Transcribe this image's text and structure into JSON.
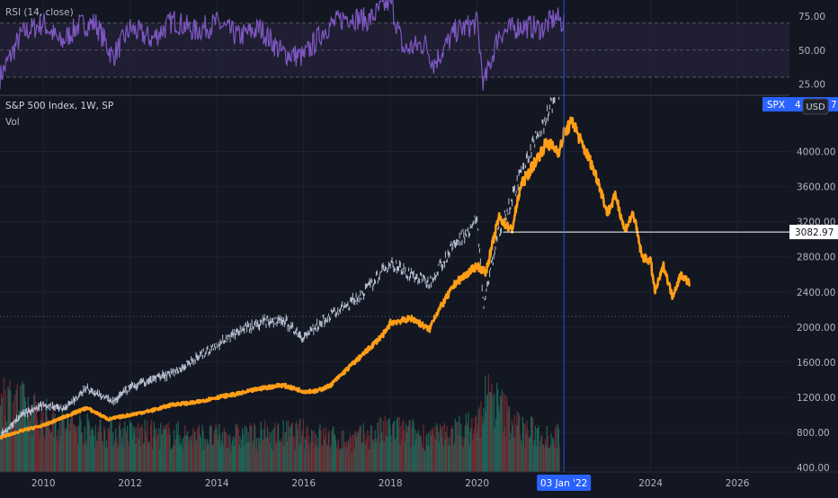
{
  "rsi_pane": {
    "label": "RSI (14, close)",
    "axis_ticks": [
      "75.00",
      "50.00",
      "25.00"
    ]
  },
  "main_pane": {
    "title": "S&P 500 Index, 1W, SP",
    "volume_label": "Vol",
    "symbol_badge": "SPX",
    "symbol_badge_value": "4",
    "symbol_badge_value_tail": "7",
    "currency_button": "USD",
    "price_line_value": "3082.97",
    "crosshair_date": "03 Jan '22"
  },
  "colors": {
    "background": "#131722",
    "rsi_line": "#7e57c2",
    "rsi_band": "#2a2440",
    "projection_line": "#ff9e17",
    "price_candles": "#d6dcf0",
    "volume_up": "#1f6b5c",
    "volume_down": "#7a2b33",
    "crosshair": "#2962ff",
    "price_line": "#ffffff"
  },
  "chart_data": {
    "type": "line",
    "x_axis": {
      "ticks": [
        "2010",
        "2012",
        "2014",
        "2016",
        "2018",
        "2020",
        "2024",
        "2026"
      ],
      "range": [
        2009.0,
        2027.2
      ]
    },
    "y_axis": {
      "ticks": [
        "4000.00",
        "3600.00",
        "3200.00",
        "2800.00",
        "2400.00",
        "2000.00",
        "1600.00",
        "1200.00",
        "800.00",
        "400.00"
      ],
      "range": [
        350,
        4620
      ]
    },
    "rsi": {
      "ylim": [
        18,
        87
      ],
      "levels": [
        70,
        30
      ],
      "x": [
        2009.0,
        2009.5,
        2010.0,
        2010.4,
        2010.8,
        2011.2,
        2011.6,
        2012.0,
        2012.5,
        2013.0,
        2013.5,
        2014.0,
        2014.5,
        2015.0,
        2015.5,
        2016.0,
        2016.5,
        2017.0,
        2017.5,
        2018.0,
        2018.3,
        2018.8,
        2019.0,
        2019.5,
        2020.0,
        2020.15,
        2020.5,
        2021.0,
        2021.5,
        2021.8,
        2022.0
      ],
      "values": [
        30,
        62,
        70,
        55,
        68,
        70,
        45,
        66,
        58,
        72,
        64,
        70,
        60,
        66,
        48,
        45,
        66,
        75,
        72,
        87,
        50,
        55,
        40,
        64,
        70,
        24,
        62,
        68,
        66,
        74,
        70
      ]
    },
    "series": [
      {
        "style": "candles",
        "x": [
          2009.0,
          2009.5,
          2010.0,
          2010.5,
          2011.0,
          2011.6,
          2012.0,
          2012.5,
          2013.0,
          2013.5,
          2014.0,
          2014.5,
          2015.0,
          2015.5,
          2016.0,
          2016.5,
          2017.0,
          2017.5,
          2018.0,
          2018.3,
          2018.9,
          2019.0,
          2019.5,
          2020.0,
          2020.15,
          2020.5,
          2021.0,
          2021.5,
          2021.9
        ],
        "values": [
          760,
          1000,
          1110,
          1080,
          1300,
          1150,
          1310,
          1400,
          1480,
          1640,
          1790,
          1960,
          2050,
          2100,
          1880,
          2100,
          2240,
          2450,
          2740,
          2640,
          2500,
          2600,
          2950,
          3220,
          2250,
          3100,
          3720,
          4300,
          4750
        ]
      },
      {
        "style": "line",
        "x": [
          2009.0,
          2009.5,
          2010.0,
          2010.5,
          2011.0,
          2011.5,
          2012.0,
          2012.5,
          2013.0,
          2013.5,
          2014.0,
          2014.5,
          2015.0,
          2015.5,
          2016.0,
          2016.3,
          2016.6,
          2017.0,
          2017.5,
          2017.9,
          2018.0,
          2018.5,
          2018.9,
          2019.0,
          2019.5,
          2020.0,
          2020.2,
          2020.5,
          2020.8,
          2021.0,
          2021.3,
          2021.6,
          2021.9,
          2022.0,
          2022.2,
          2022.4,
          2022.6,
          2022.8,
          2023.0,
          2023.2,
          2023.4,
          2023.6,
          2023.8,
          2024.0,
          2024.1,
          2024.3,
          2024.5,
          2024.7,
          2024.9
        ],
        "values": [
          740,
          820,
          880,
          980,
          1080,
          950,
          1000,
          1050,
          1120,
          1140,
          1200,
          1240,
          1300,
          1340,
          1270,
          1270,
          1330,
          1520,
          1750,
          1950,
          2050,
          2100,
          1970,
          2100,
          2500,
          2700,
          2620,
          3250,
          3100,
          3600,
          3850,
          4100,
          4000,
          4200,
          4350,
          4100,
          3900,
          3650,
          3300,
          3500,
          3100,
          3300,
          2800,
          2750,
          2400,
          2700,
          2350,
          2600,
          2500
        ]
      }
    ],
    "volume": {
      "x": [
        2009.0,
        2010.0,
        2011.0,
        2012.0,
        2014.0,
        2016.0,
        2017.0,
        2018.0,
        2019.0,
        2020.0,
        2020.2,
        2021.0,
        2021.9
      ],
      "values": [
        1.0,
        0.7,
        0.55,
        0.5,
        0.45,
        0.5,
        0.4,
        0.55,
        0.45,
        0.6,
        1.0,
        0.55,
        0.45
      ]
    }
  }
}
